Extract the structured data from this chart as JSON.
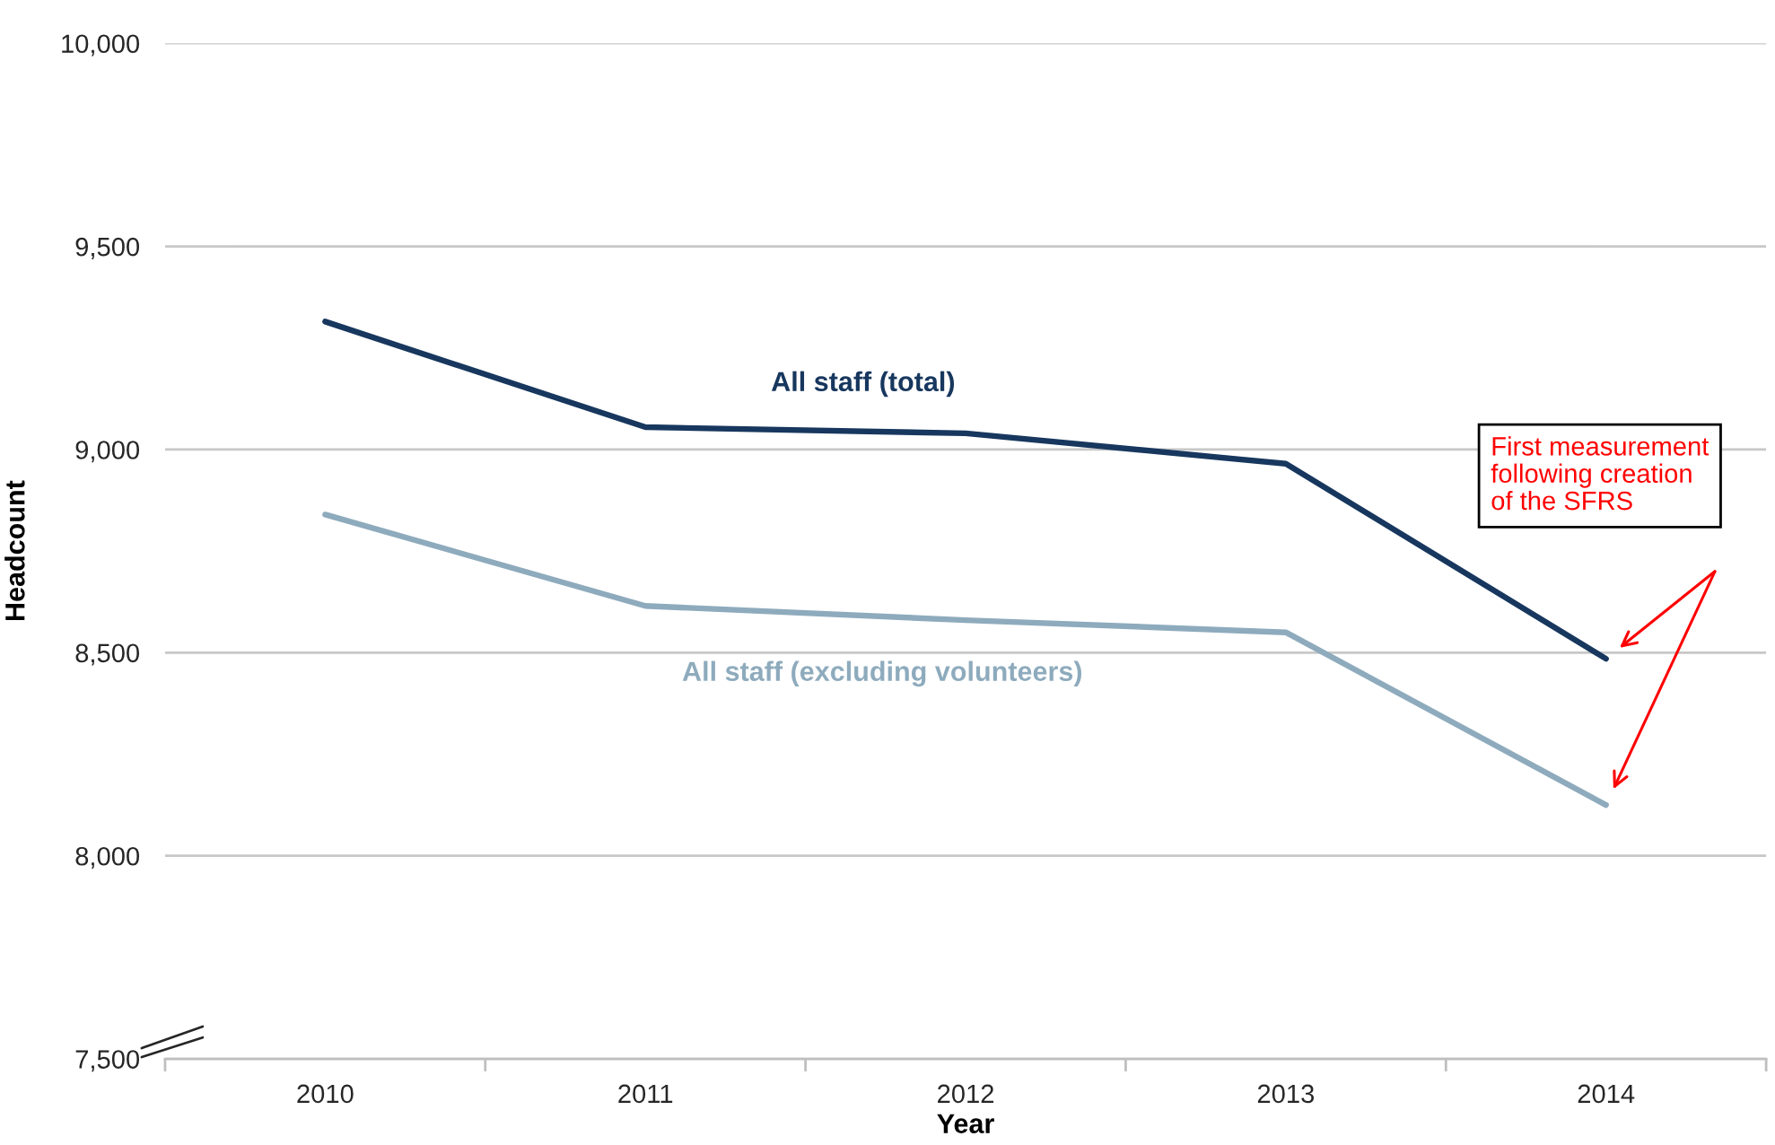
{
  "chart_data": {
    "type": "line",
    "categories": [
      "2010",
      "2011",
      "2012",
      "2013",
      "2014"
    ],
    "series": [
      {
        "name": "All staff (total)",
        "color": "#17375e",
        "values": [
          9315,
          9055,
          9040,
          8965,
          8485
        ]
      },
      {
        "name": "All staff (excluding volunteers)",
        "color": "#8eabbd",
        "values": [
          8840,
          8615,
          8580,
          8550,
          8125
        ]
      }
    ],
    "xlabel": "Year",
    "ylabel": "Headcount",
    "ylim": [
      7500,
      10000
    ],
    "yticks": [
      {
        "value": 7500,
        "label": "7,500"
      },
      {
        "value": 8000,
        "label": "8,000"
      },
      {
        "value": 8500,
        "label": "8,500"
      },
      {
        "value": 9000,
        "label": "9,000"
      },
      {
        "value": 9500,
        "label": "9,500"
      },
      {
        "value": 10000,
        "label": "10,000"
      }
    ],
    "grid": "y",
    "legend": false,
    "line_style": "solid",
    "annotations": [
      "First measurement\nfollowing creation\nof the SFRS"
    ]
  }
}
